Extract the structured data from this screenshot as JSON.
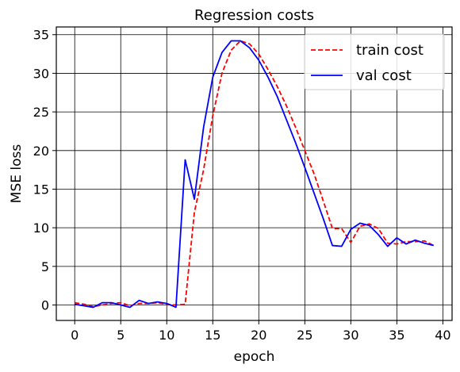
{
  "chart_data": {
    "type": "line",
    "title": "Regression costs",
    "xlabel": "epoch",
    "ylabel": "MSE loss",
    "xlim": [
      -2,
      41
    ],
    "ylim": [
      -2,
      36
    ],
    "xticks": [
      0,
      5,
      10,
      15,
      20,
      25,
      30,
      35,
      40
    ],
    "yticks": [
      0,
      5,
      10,
      15,
      20,
      25,
      30,
      35
    ],
    "grid": true,
    "legend_position": "top-right",
    "x": [
      0,
      1,
      2,
      3,
      4,
      5,
      6,
      7,
      8,
      9,
      10,
      11,
      12,
      13,
      14,
      15,
      16,
      17,
      18,
      19,
      20,
      21,
      22,
      23,
      24,
      25,
      26,
      27,
      28,
      29,
      30,
      31,
      32,
      33,
      34,
      35,
      36,
      37,
      38,
      39
    ],
    "series": [
      {
        "name": "train cost",
        "color": "#ff0000",
        "dash": "dashed",
        "values": [
          0.3,
          0.1,
          -0.2,
          0.0,
          0.2,
          0.3,
          -0.1,
          0.2,
          0.2,
          0.3,
          0.1,
          0.0,
          0.1,
          12.0,
          17.5,
          24.5,
          30.0,
          33.0,
          34.2,
          33.8,
          32.5,
          30.5,
          28.3,
          25.8,
          23.0,
          20.0,
          17.0,
          13.5,
          9.9,
          9.9,
          8.1,
          10.2,
          10.5,
          9.9,
          8.0,
          7.9,
          8.2,
          8.2,
          8.3,
          7.7
        ]
      },
      {
        "name": "val cost",
        "color": "#0000ff",
        "dash": "solid",
        "values": [
          0.1,
          -0.1,
          -0.3,
          0.3,
          0.3,
          0.0,
          -0.3,
          0.6,
          0.2,
          0.4,
          0.2,
          -0.3,
          18.8,
          13.7,
          23.0,
          29.5,
          32.7,
          34.2,
          34.2,
          33.3,
          31.7,
          29.5,
          27.0,
          24.0,
          21.0,
          17.8,
          14.5,
          11.2,
          7.7,
          7.6,
          9.8,
          10.6,
          10.3,
          9.1,
          7.6,
          8.7,
          7.9,
          8.4,
          8.0,
          7.7
        ]
      }
    ]
  }
}
